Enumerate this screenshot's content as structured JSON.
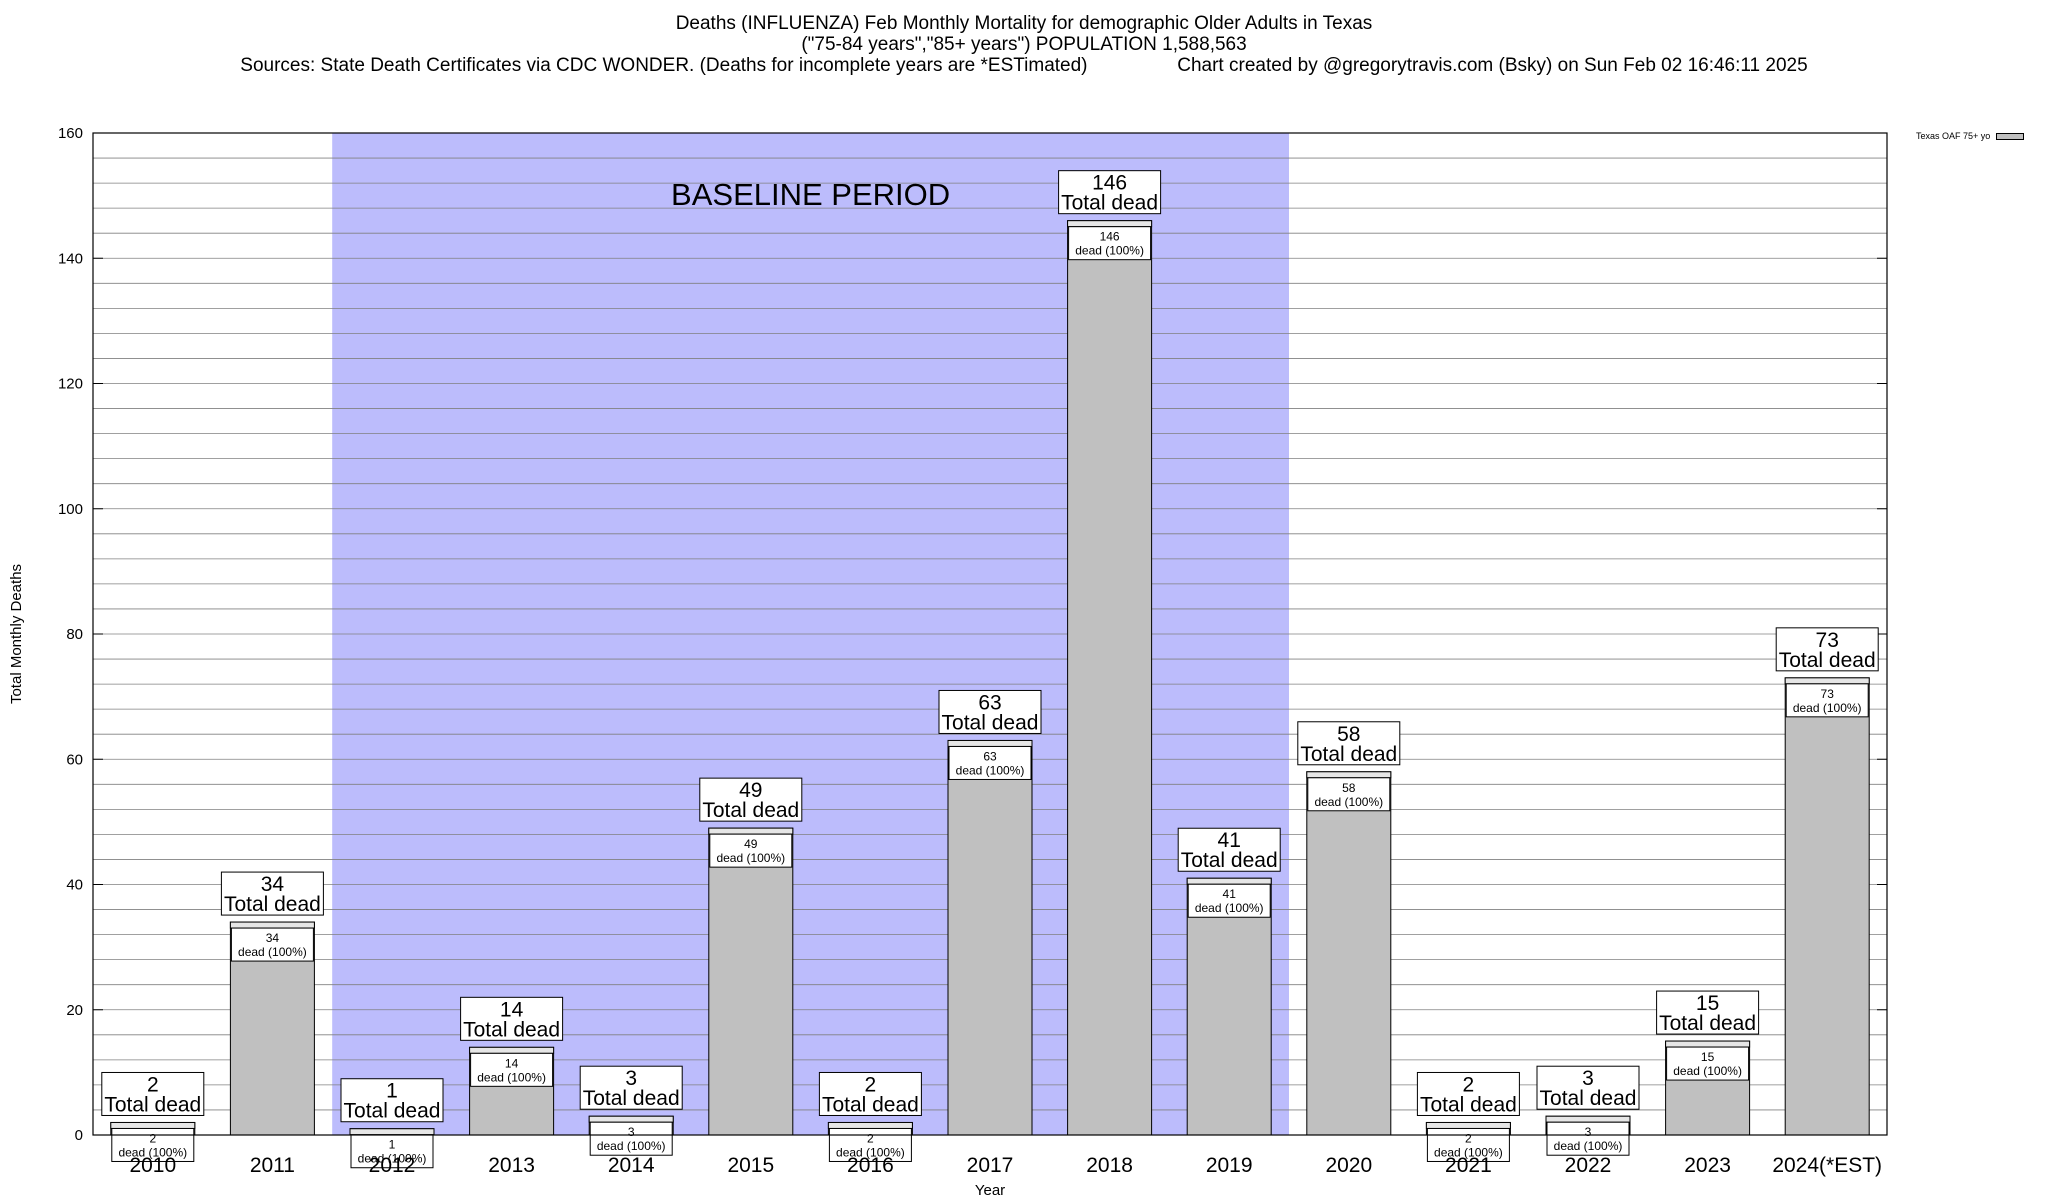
{
  "header": {
    "title_line1": "Deaths (INFLUENZA) Feb Monthly Mortality for demographic Older Adults in Texas",
    "title_line2": "(\"75-84 years\",\"85+ years\") POPULATION 1,588,563",
    "sources": "Sources: State Death Certificates via CDC WONDER. (Deaths for incomplete years are *ESTimated)",
    "credit": "Chart created by @gregorytravis.com (Bsky) on Sun Feb 02 16:46:11 2025"
  },
  "chart_data": {
    "type": "bar",
    "categories": [
      "2010",
      "2011",
      "2012",
      "2013",
      "2014",
      "2015",
      "2016",
      "2017",
      "2018",
      "2019",
      "2020",
      "2021",
      "2022",
      "2023",
      "2024(*EST)"
    ],
    "series": [
      {
        "name": "Texas OAF 75+ yo",
        "values": [
          2,
          34,
          1,
          14,
          3,
          49,
          2,
          63,
          146,
          41,
          58,
          2,
          3,
          15,
          73
        ]
      }
    ],
    "xlabel": "Year",
    "ylabel": "Total Monthly Deaths",
    "ylim": [
      0,
      160
    ],
    "yticks": [
      0,
      20,
      40,
      60,
      80,
      100,
      120,
      140,
      160
    ],
    "minor_tick_step": 4,
    "grid": true,
    "legend_position": "top-right",
    "baseline_period": {
      "label": "BASELINE PERIOD",
      "start": "2012",
      "end": "2019"
    },
    "annotation_total_suffix": "Total dead",
    "annotation_pct_label": "dead (100%)",
    "colors": {
      "bar": "#c0c0c0",
      "baseline": "#bcbcfc",
      "grid": "#808080"
    }
  }
}
